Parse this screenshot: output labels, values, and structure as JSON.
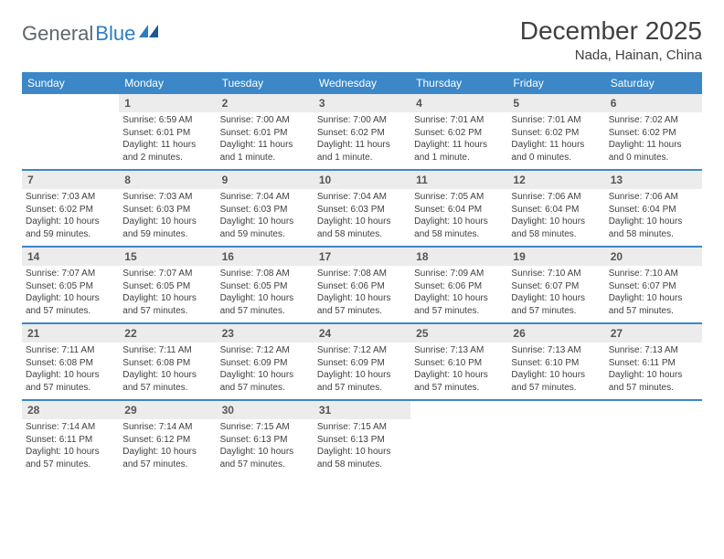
{
  "logo": {
    "text1": "General",
    "text2": "Blue"
  },
  "title": "December 2025",
  "location": "Nada, Hainan, China",
  "colors": {
    "header_bg": "#3b87c8",
    "header_text": "#ffffff",
    "daynum_bg": "#ececec",
    "daynum_text": "#555555",
    "body_text": "#404040",
    "row_border": "#3b87c8",
    "logo_gray": "#5c6670",
    "logo_blue": "#2d7dc0"
  },
  "day_names": [
    "Sunday",
    "Monday",
    "Tuesday",
    "Wednesday",
    "Thursday",
    "Friday",
    "Saturday"
  ],
  "weeks": [
    {
      "days": [
        {
          "num": "",
          "sunrise": "",
          "sunset": "",
          "daylight": ""
        },
        {
          "num": "1",
          "sunrise": "Sunrise: 6:59 AM",
          "sunset": "Sunset: 6:01 PM",
          "daylight": "Daylight: 11 hours and 2 minutes."
        },
        {
          "num": "2",
          "sunrise": "Sunrise: 7:00 AM",
          "sunset": "Sunset: 6:01 PM",
          "daylight": "Daylight: 11 hours and 1 minute."
        },
        {
          "num": "3",
          "sunrise": "Sunrise: 7:00 AM",
          "sunset": "Sunset: 6:02 PM",
          "daylight": "Daylight: 11 hours and 1 minute."
        },
        {
          "num": "4",
          "sunrise": "Sunrise: 7:01 AM",
          "sunset": "Sunset: 6:02 PM",
          "daylight": "Daylight: 11 hours and 1 minute."
        },
        {
          "num": "5",
          "sunrise": "Sunrise: 7:01 AM",
          "sunset": "Sunset: 6:02 PM",
          "daylight": "Daylight: 11 hours and 0 minutes."
        },
        {
          "num": "6",
          "sunrise": "Sunrise: 7:02 AM",
          "sunset": "Sunset: 6:02 PM",
          "daylight": "Daylight: 11 hours and 0 minutes."
        }
      ]
    },
    {
      "days": [
        {
          "num": "7",
          "sunrise": "Sunrise: 7:03 AM",
          "sunset": "Sunset: 6:02 PM",
          "daylight": "Daylight: 10 hours and 59 minutes."
        },
        {
          "num": "8",
          "sunrise": "Sunrise: 7:03 AM",
          "sunset": "Sunset: 6:03 PM",
          "daylight": "Daylight: 10 hours and 59 minutes."
        },
        {
          "num": "9",
          "sunrise": "Sunrise: 7:04 AM",
          "sunset": "Sunset: 6:03 PM",
          "daylight": "Daylight: 10 hours and 59 minutes."
        },
        {
          "num": "10",
          "sunrise": "Sunrise: 7:04 AM",
          "sunset": "Sunset: 6:03 PM",
          "daylight": "Daylight: 10 hours and 58 minutes."
        },
        {
          "num": "11",
          "sunrise": "Sunrise: 7:05 AM",
          "sunset": "Sunset: 6:04 PM",
          "daylight": "Daylight: 10 hours and 58 minutes."
        },
        {
          "num": "12",
          "sunrise": "Sunrise: 7:06 AM",
          "sunset": "Sunset: 6:04 PM",
          "daylight": "Daylight: 10 hours and 58 minutes."
        },
        {
          "num": "13",
          "sunrise": "Sunrise: 7:06 AM",
          "sunset": "Sunset: 6:04 PM",
          "daylight": "Daylight: 10 hours and 58 minutes."
        }
      ]
    },
    {
      "days": [
        {
          "num": "14",
          "sunrise": "Sunrise: 7:07 AM",
          "sunset": "Sunset: 6:05 PM",
          "daylight": "Daylight: 10 hours and 57 minutes."
        },
        {
          "num": "15",
          "sunrise": "Sunrise: 7:07 AM",
          "sunset": "Sunset: 6:05 PM",
          "daylight": "Daylight: 10 hours and 57 minutes."
        },
        {
          "num": "16",
          "sunrise": "Sunrise: 7:08 AM",
          "sunset": "Sunset: 6:05 PM",
          "daylight": "Daylight: 10 hours and 57 minutes."
        },
        {
          "num": "17",
          "sunrise": "Sunrise: 7:08 AM",
          "sunset": "Sunset: 6:06 PM",
          "daylight": "Daylight: 10 hours and 57 minutes."
        },
        {
          "num": "18",
          "sunrise": "Sunrise: 7:09 AM",
          "sunset": "Sunset: 6:06 PM",
          "daylight": "Daylight: 10 hours and 57 minutes."
        },
        {
          "num": "19",
          "sunrise": "Sunrise: 7:10 AM",
          "sunset": "Sunset: 6:07 PM",
          "daylight": "Daylight: 10 hours and 57 minutes."
        },
        {
          "num": "20",
          "sunrise": "Sunrise: 7:10 AM",
          "sunset": "Sunset: 6:07 PM",
          "daylight": "Daylight: 10 hours and 57 minutes."
        }
      ]
    },
    {
      "days": [
        {
          "num": "21",
          "sunrise": "Sunrise: 7:11 AM",
          "sunset": "Sunset: 6:08 PM",
          "daylight": "Daylight: 10 hours and 57 minutes."
        },
        {
          "num": "22",
          "sunrise": "Sunrise: 7:11 AM",
          "sunset": "Sunset: 6:08 PM",
          "daylight": "Daylight: 10 hours and 57 minutes."
        },
        {
          "num": "23",
          "sunrise": "Sunrise: 7:12 AM",
          "sunset": "Sunset: 6:09 PM",
          "daylight": "Daylight: 10 hours and 57 minutes."
        },
        {
          "num": "24",
          "sunrise": "Sunrise: 7:12 AM",
          "sunset": "Sunset: 6:09 PM",
          "daylight": "Daylight: 10 hours and 57 minutes."
        },
        {
          "num": "25",
          "sunrise": "Sunrise: 7:13 AM",
          "sunset": "Sunset: 6:10 PM",
          "daylight": "Daylight: 10 hours and 57 minutes."
        },
        {
          "num": "26",
          "sunrise": "Sunrise: 7:13 AM",
          "sunset": "Sunset: 6:10 PM",
          "daylight": "Daylight: 10 hours and 57 minutes."
        },
        {
          "num": "27",
          "sunrise": "Sunrise: 7:13 AM",
          "sunset": "Sunset: 6:11 PM",
          "daylight": "Daylight: 10 hours and 57 minutes."
        }
      ]
    },
    {
      "days": [
        {
          "num": "28",
          "sunrise": "Sunrise: 7:14 AM",
          "sunset": "Sunset: 6:11 PM",
          "daylight": "Daylight: 10 hours and 57 minutes."
        },
        {
          "num": "29",
          "sunrise": "Sunrise: 7:14 AM",
          "sunset": "Sunset: 6:12 PM",
          "daylight": "Daylight: 10 hours and 57 minutes."
        },
        {
          "num": "30",
          "sunrise": "Sunrise: 7:15 AM",
          "sunset": "Sunset: 6:13 PM",
          "daylight": "Daylight: 10 hours and 57 minutes."
        },
        {
          "num": "31",
          "sunrise": "Sunrise: 7:15 AM",
          "sunset": "Sunset: 6:13 PM",
          "daylight": "Daylight: 10 hours and 58 minutes."
        },
        {
          "num": "",
          "sunrise": "",
          "sunset": "",
          "daylight": ""
        },
        {
          "num": "",
          "sunrise": "",
          "sunset": "",
          "daylight": ""
        },
        {
          "num": "",
          "sunrise": "",
          "sunset": "",
          "daylight": ""
        }
      ]
    }
  ]
}
